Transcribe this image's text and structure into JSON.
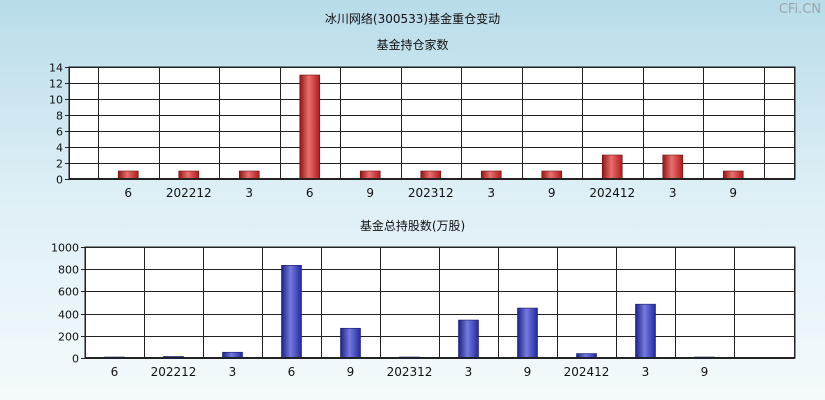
{
  "page": {
    "title": "冰川网络(300533)基金重仓变动",
    "watermark": "CFi.CN"
  },
  "chart_data": [
    {
      "type": "bar",
      "title": "基金持仓家数",
      "categories": [
        "6",
        "202212",
        "3",
        "6",
        "9",
        "202312",
        "3",
        "9",
        "202412",
        "3",
        "9"
      ],
      "values": [
        1,
        1,
        1,
        13,
        1,
        1,
        1,
        1,
        3,
        3,
        1
      ],
      "ylim": [
        0,
        14
      ],
      "yticks": [
        0,
        2,
        4,
        6,
        8,
        10,
        12,
        14
      ],
      "grid": true,
      "bar_color": "#dd2222"
    },
    {
      "type": "bar",
      "title": "基金总持股数(万股)",
      "categories": [
        "6",
        "202212",
        "3",
        "6",
        "9",
        "202312",
        "3",
        "9",
        "202412",
        "3",
        "9"
      ],
      "values": [
        8,
        14,
        52,
        835,
        268,
        6,
        342,
        450,
        40,
        485,
        8
      ],
      "ylim": [
        0,
        1000
      ],
      "yticks": [
        0,
        200,
        400,
        600,
        800,
        1000
      ],
      "grid": true,
      "bar_color": "#2b33cc"
    }
  ]
}
